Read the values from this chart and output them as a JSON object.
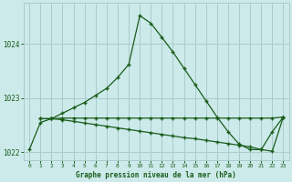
{
  "title": "Graphe pression niveau de la mer (hPa)",
  "bg_color": "#cceaea",
  "grid_color": "#aacccc",
  "line_color": "#1a5c1a",
  "xlim": [
    -0.5,
    23.5
  ],
  "ylim": [
    1021.85,
    1024.75
  ],
  "yticks": [
    1022,
    1023,
    1024
  ],
  "xticks": [
    0,
    1,
    2,
    3,
    4,
    5,
    6,
    7,
    8,
    9,
    10,
    11,
    12,
    13,
    14,
    15,
    16,
    17,
    18,
    19,
    20,
    21,
    22,
    23
  ],
  "line1_x": [
    0,
    1,
    2,
    3,
    4,
    5,
    6,
    7,
    8,
    9,
    10,
    11,
    12,
    13,
    14,
    15,
    16,
    17,
    18,
    19,
    20,
    21,
    22,
    23
  ],
  "line1_y": [
    1022.05,
    1022.55,
    1022.62,
    1022.72,
    1022.82,
    1022.92,
    1023.05,
    1023.18,
    1023.38,
    1023.62,
    1024.52,
    1024.38,
    1024.12,
    1023.85,
    1023.55,
    1023.25,
    1022.95,
    1022.65,
    1022.38,
    1022.15,
    1022.05,
    1022.05,
    1022.38,
    1022.65
  ],
  "line2_x": [
    1,
    2,
    3,
    4,
    5,
    6,
    7,
    8,
    9,
    10,
    11,
    12,
    13,
    14,
    15,
    16,
    17,
    18,
    19,
    20,
    21,
    22,
    23
  ],
  "line2_y": [
    1022.62,
    1022.62,
    1022.6,
    1022.57,
    1022.54,
    1022.51,
    1022.48,
    1022.45,
    1022.42,
    1022.39,
    1022.36,
    1022.33,
    1022.3,
    1022.27,
    1022.25,
    1022.22,
    1022.19,
    1022.16,
    1022.13,
    1022.1,
    1022.05,
    1022.02,
    1022.65
  ],
  "line3_x": [
    1,
    2,
    3,
    4,
    5,
    6,
    7,
    8,
    9,
    10,
    11,
    12,
    13,
    14,
    15,
    16,
    17,
    18,
    19,
    20,
    21,
    22,
    23
  ],
  "line3_y": [
    1022.62,
    1022.62,
    1022.63,
    1022.63,
    1022.63,
    1022.63,
    1022.63,
    1022.63,
    1022.63,
    1022.63,
    1022.63,
    1022.63,
    1022.63,
    1022.63,
    1022.63,
    1022.63,
    1022.63,
    1022.63,
    1022.63,
    1022.63,
    1022.63,
    1022.63,
    1022.65
  ]
}
